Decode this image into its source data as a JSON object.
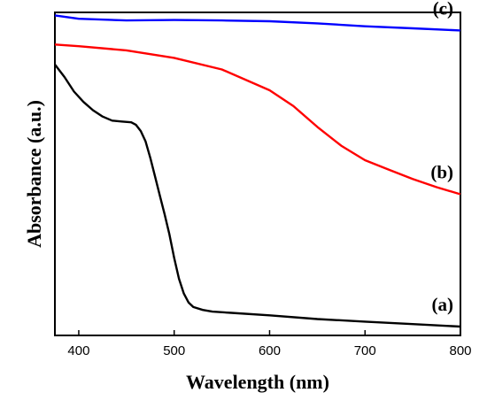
{
  "chart_data": {
    "type": "line",
    "xlabel": "Wavelength (nm)",
    "ylabel": "Absorbance (a.u.)",
    "xlim": [
      375,
      800
    ],
    "ylim": [
      0,
      1
    ],
    "xticks": [
      400,
      500,
      600,
      700,
      800
    ],
    "xtick_labels": [
      "400",
      "500",
      "600",
      "700",
      "800"
    ],
    "yticks_labeled": false,
    "grid": false,
    "series": [
      {
        "name": "(a)",
        "color": "#000000",
        "x": [
          375,
          385,
          395,
          405,
          415,
          425,
          435,
          445,
          455,
          460,
          465,
          470,
          475,
          480,
          485,
          490,
          495,
          500,
          505,
          510,
          515,
          520,
          530,
          540,
          560,
          600,
          650,
          700,
          750,
          800
        ],
        "y": [
          0.63,
          0.6,
          0.565,
          0.54,
          0.52,
          0.505,
          0.495,
          0.493,
          0.491,
          0.485,
          0.47,
          0.445,
          0.405,
          0.36,
          0.315,
          0.27,
          0.222,
          0.165,
          0.115,
          0.08,
          0.058,
          0.047,
          0.04,
          0.036,
          0.033,
          0.027,
          0.018,
          0.012,
          0.006,
          0.0
        ]
      },
      {
        "name": "(b)",
        "color": "#ff0000",
        "x": [
          375,
          400,
          450,
          500,
          550,
          600,
          625,
          650,
          675,
          700,
          725,
          750,
          775,
          800
        ],
        "y": [
          0.678,
          0.674,
          0.664,
          0.646,
          0.618,
          0.568,
          0.53,
          0.48,
          0.435,
          0.4,
          0.377,
          0.355,
          0.335,
          0.318
        ]
      },
      {
        "name": "(c)",
        "color": "#0000ff",
        "x": [
          375,
          400,
          450,
          500,
          550,
          600,
          650,
          700,
          750,
          800
        ],
        "y": [
          0.748,
          0.74,
          0.736,
          0.737,
          0.736,
          0.734,
          0.729,
          0.722,
          0.717,
          0.712
        ]
      }
    ]
  }
}
